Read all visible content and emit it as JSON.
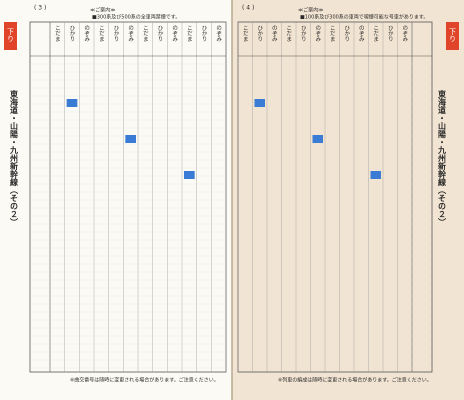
{
  "pages": [
    {
      "number": "( 3 )",
      "direction": "下り",
      "title": "東海道・山陽・九州新幹線（その２）",
      "notice_heading": "≪ご案内≫",
      "notice": "■300系及び500系の全車両禁煙です。",
      "footer": "※曲交番号は随時に変更される場合があります。ご注意ください。",
      "trains": [
        "こだま",
        "ひかり",
        "のぞみ",
        "こだま",
        "ひかり",
        "のぞみ",
        "こだま",
        "ひかり",
        "のぞみ",
        "こだま",
        "ひかり",
        "のぞみ"
      ]
    },
    {
      "number": "( 4 )",
      "direction": "下り",
      "title": "東海道・山陽・九州新幹線（その２）",
      "notice_heading": "≪ご案内≫",
      "notice": "■100系及び300系の車両で喫煙可能な号車があります。",
      "footer": "※列車の編成は随時に変更される場合があります。ご注意ください。",
      "trains": [
        "こだま",
        "ひかり",
        "のぞみ",
        "こだま",
        "ひかり",
        "のぞみ",
        "こだま",
        "ひかり",
        "のぞみ",
        "こだま",
        "ひかり",
        "のぞみ"
      ]
    }
  ]
}
